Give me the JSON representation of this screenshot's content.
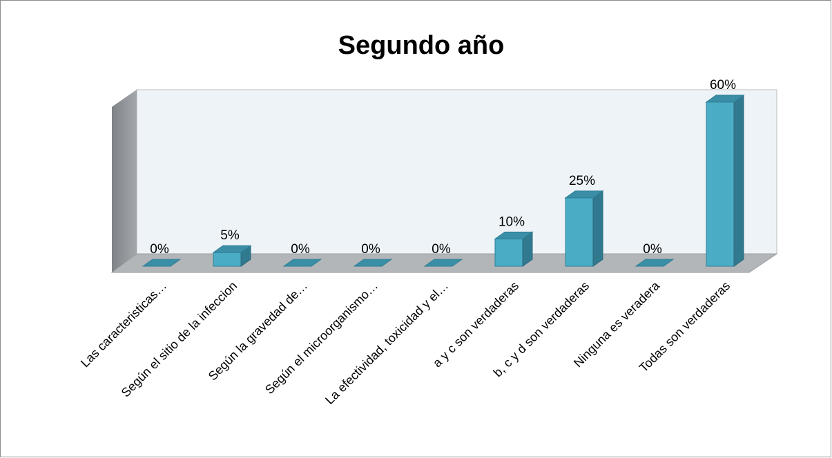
{
  "chart_data": {
    "type": "bar3d",
    "title": "Segundo año",
    "categories": [
      "Las caracteristicas…",
      "Según el sitio de la infeccion",
      "Según la gravedad de…",
      "Según el microorganismo…",
      "La efectividad, toxicidad y el…",
      "a y c son verdaderas",
      "b, c y d son verdaderas",
      "Ninguna es veradera",
      "Todas son verdaderas"
    ],
    "values": [
      0,
      5,
      0,
      0,
      0,
      10,
      25,
      0,
      60
    ],
    "value_labels": [
      "0%",
      "5%",
      "0%",
      "0%",
      "0%",
      "10%",
      "25%",
      "0%",
      "60%"
    ],
    "color": "#4bacc6"
  }
}
